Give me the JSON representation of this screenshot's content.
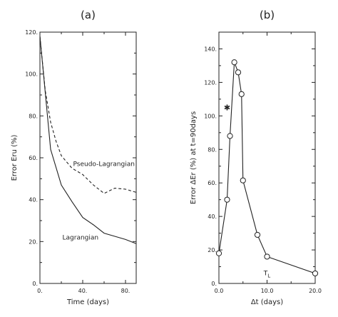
{
  "chart_data": [
    {
      "type": "line",
      "panel_label": "(a)",
      "xlabel": "Time (days)",
      "ylabel": "Error Eru (%)",
      "xlim": [
        0,
        90
      ],
      "ylim": [
        0,
        120
      ],
      "xticks": [
        0,
        40,
        80
      ],
      "xtick_labels": [
        "0.",
        "40.",
        "80."
      ],
      "yticks": [
        0,
        20,
        40,
        60,
        80,
        100,
        120
      ],
      "ytick_labels": [
        "0.",
        "20.",
        "40.",
        "60.",
        "80.",
        "100.",
        "120."
      ],
      "series": [
        {
          "name": "Lagrangian",
          "style": "solid",
          "x": [
            0,
            10,
            20,
            30,
            40,
            50,
            60,
            70,
            80,
            90
          ],
          "y": [
            118,
            64,
            47,
            39,
            31.5,
            28,
            24,
            22.5,
            21,
            19
          ]
        },
        {
          "name": "Pseudo-Lagrangian",
          "style": "dashed",
          "x": [
            0,
            5,
            10,
            15,
            20,
            30,
            40,
            50,
            60,
            70,
            80,
            90
          ],
          "y": [
            118,
            92,
            77,
            68,
            61,
            55,
            52,
            47,
            43,
            45.5,
            45,
            43.5
          ]
        }
      ],
      "annotations": [
        {
          "text": "Pseudo-Lagrangian",
          "x": 31,
          "y": 56
        },
        {
          "text": "Lagrangian",
          "x": 21,
          "y": 21
        }
      ]
    },
    {
      "type": "line",
      "panel_label": "(b)",
      "xlabel": "Δt (days)",
      "ylabel": "Error ΔEr (%) at t=90days",
      "xlim": [
        0,
        20
      ],
      "ylim": [
        0,
        150
      ],
      "xticks": [
        0,
        10,
        20
      ],
      "xtick_labels": [
        "0.0",
        "10.0",
        "20.0"
      ],
      "yticks": [
        0,
        20,
        40,
        60,
        80,
        100,
        120,
        140
      ],
      "ytick_labels": [
        "0.",
        "20.",
        "40.",
        "60.",
        "80.",
        "100.",
        "120.",
        "140."
      ],
      "series": [
        {
          "style": "solid-circles",
          "x": [
            0,
            1.7,
            2.3,
            3.2,
            4.0,
            4.7,
            5.0,
            8.0,
            10.0,
            20.0
          ],
          "y": [
            18,
            50,
            88,
            132,
            126,
            113,
            61.5,
            29,
            16,
            6
          ]
        }
      ],
      "extra_marker": {
        "x": 1.7,
        "y": 105,
        "symbol": "✱"
      },
      "annotations": [
        {
          "text": "T",
          "sub": "L",
          "x": 10.0,
          "y": 5
        }
      ]
    }
  ]
}
